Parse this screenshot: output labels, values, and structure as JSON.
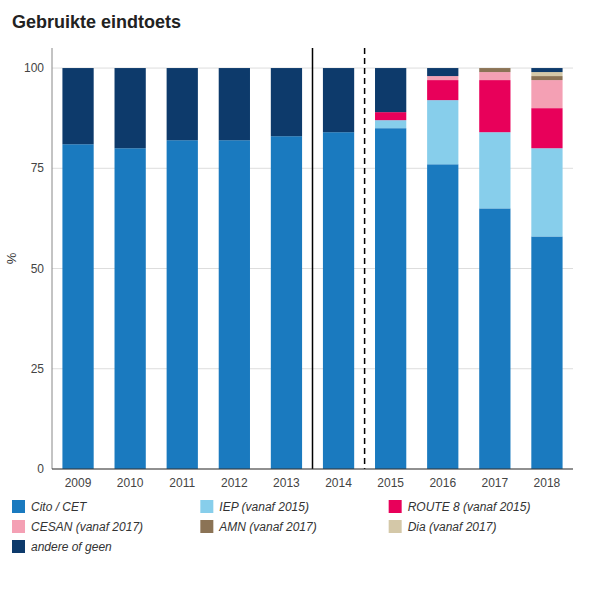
{
  "chart_data": {
    "type": "bar",
    "stacked": true,
    "title": "Gebruikte eindtoets",
    "ylabel": "%",
    "categories": [
      "2009",
      "2010",
      "2011",
      "2012",
      "2013",
      "2014",
      "2015",
      "2016",
      "2017",
      "2018"
    ],
    "series": [
      {
        "name": "Cito / CET",
        "color": "#1a7abf",
        "values": [
          81,
          80,
          82,
          82,
          83,
          84,
          85,
          76,
          65,
          58
        ]
      },
      {
        "name": "IEP (vanaf 2015)",
        "color": "#87ceeb",
        "values": [
          0,
          0,
          0,
          0,
          0,
          0,
          2,
          16,
          19,
          22
        ]
      },
      {
        "name": "ROUTE 8 (vanaf 2015)",
        "color": "#e8005a",
        "values": [
          0,
          0,
          0,
          0,
          0,
          0,
          2,
          5,
          13,
          10
        ]
      },
      {
        "name": "CESAN (vanaf 2017)",
        "color": "#f4a0b4",
        "values": [
          0,
          0,
          0,
          0,
          0,
          0,
          0,
          1,
          2,
          7
        ]
      },
      {
        "name": "AMN (vanaf 2017)",
        "color": "#8b7355",
        "values": [
          0,
          0,
          0,
          0,
          0,
          0,
          0,
          0,
          1,
          1
        ]
      },
      {
        "name": "Dia (vanaf 2017)",
        "color": "#d4c8a8",
        "values": [
          0,
          0,
          0,
          0,
          0,
          0,
          0,
          0,
          0,
          1
        ]
      },
      {
        "name": "andere of geen",
        "color": "#0d3a6b",
        "values": [
          19,
          20,
          18,
          18,
          17,
          16,
          11,
          2,
          0,
          1
        ]
      }
    ],
    "vlines": [
      {
        "x": 4.5,
        "line_style": "solid"
      },
      {
        "x": 5.5,
        "line_style": "dashed"
      }
    ],
    "ylim": [
      0,
      105
    ],
    "yticks": [
      0,
      25,
      50,
      75,
      100
    ],
    "grid": true
  }
}
